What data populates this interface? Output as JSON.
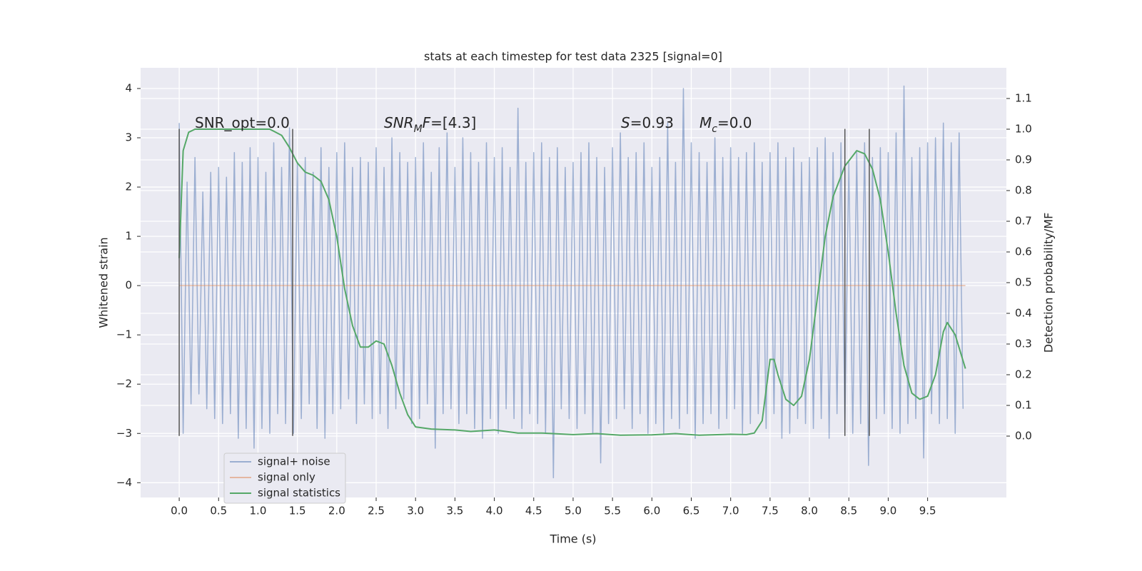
{
  "chart_data": {
    "type": "line",
    "title": "stats at each timestep for test data 2325 [signal=0]",
    "xlabel": "Time (s)",
    "ylabel": "Whitened strain",
    "y2label": "Detection probability/MF",
    "xlim": [
      -0.49,
      10.5
    ],
    "ylim": [
      -4.3,
      4.42
    ],
    "y2lim": [
      -0.2,
      1.2
    ],
    "xticks": [
      {
        "value": 0,
        "label": "0.0"
      },
      0.5,
      {
        "value": 1,
        "label": "1.0"
      },
      1.5,
      {
        "value": 2,
        "label": "2.0"
      },
      2.5,
      {
        "value": 3,
        "label": "3.0"
      },
      3.5,
      {
        "value": 4,
        "label": "4.0"
      },
      4.5,
      {
        "value": 5,
        "label": "5.0"
      },
      5.5,
      {
        "value": 6,
        "label": "6.0"
      },
      6.5,
      {
        "value": 7,
        "label": "7.0"
      },
      7.5,
      {
        "value": 8,
        "label": "8.0"
      },
      8.5,
      {
        "value": 9,
        "label": "9.0"
      },
      9.5
    ],
    "yticks": [
      {
        "value": -4,
        "label": "−4"
      },
      {
        "value": -3,
        "label": "−3"
      },
      {
        "value": -2,
        "label": "−2"
      },
      {
        "value": -1,
        "label": "−1"
      },
      0,
      1,
      2,
      3,
      4
    ],
    "y2ticks": [
      {
        "value": 0,
        "label": "0.0"
      },
      0.1,
      0.2,
      0.3,
      0.4,
      0.5,
      0.6,
      0.7,
      0.8,
      0.9,
      {
        "value": 1,
        "label": "1.0"
      },
      1.1
    ],
    "grid": true,
    "legend": "lower left",
    "vlines": {
      "x": [
        0,
        1.44,
        8.45,
        8.76
      ],
      "span": [
        -3.05,
        3.18
      ],
      "color": "#555555"
    },
    "annotations": [
      {
        "parts": [
          {
            "text": "SNR_opt=0.0"
          }
        ]
      },
      {
        "parts": [
          {
            "text": "SNR",
            "italic": true
          },
          {
            "text": "M",
            "italic": true,
            "sub": true
          },
          {
            "text": "F",
            "italic": true
          },
          {
            "text": "=[4.3]"
          }
        ]
      },
      {
        "parts": [
          {
            "text": "S",
            "italic": true
          },
          {
            "text": "=0.93"
          }
        ]
      },
      {
        "parts": [
          {
            "text": "M",
            "italic": true
          },
          {
            "text": "c",
            "italic": true,
            "sub": true
          },
          {
            "text": "=0.0"
          }
        ]
      }
    ],
    "series": [
      {
        "name": "signal+ noise",
        "color": "#4c72b0",
        "opacity": 0.5,
        "x": [
          0,
          0.05,
          0.1,
          0.15,
          0.2,
          0.25,
          0.3,
          0.35,
          0.4,
          0.45,
          0.5,
          0.55,
          0.6,
          0.65,
          0.7,
          0.75,
          0.8,
          0.85,
          0.9,
          0.95,
          1,
          1.05,
          1.1,
          1.15,
          1.2,
          1.25,
          1.3,
          1.35,
          1.4,
          1.45,
          1.5,
          1.55,
          1.6,
          1.65,
          1.7,
          1.75,
          1.8,
          1.85,
          1.9,
          1.95,
          2,
          2.05,
          2.1,
          2.15,
          2.2,
          2.25,
          2.3,
          2.35,
          2.4,
          2.45,
          2.5,
          2.55,
          2.6,
          2.65,
          2.7,
          2.75,
          2.8,
          2.85,
          2.9,
          2.95,
          3,
          3.05,
          3.1,
          3.15,
          3.2,
          3.25,
          3.3,
          3.35,
          3.4,
          3.45,
          3.5,
          3.55,
          3.6,
          3.65,
          3.7,
          3.75,
          3.8,
          3.85,
          3.9,
          3.95,
          4,
          4.05,
          4.1,
          4.15,
          4.2,
          4.25,
          4.3,
          4.35,
          4.4,
          4.45,
          4.5,
          4.55,
          4.6,
          4.65,
          4.7,
          4.75,
          4.8,
          4.85,
          4.9,
          4.95,
          5,
          5.05,
          5.1,
          5.15,
          5.2,
          5.25,
          5.3,
          5.35,
          5.4,
          5.45,
          5.5,
          5.55,
          5.6,
          5.65,
          5.7,
          5.75,
          5.8,
          5.85,
          5.9,
          5.95,
          6,
          6.05,
          6.1,
          6.15,
          6.2,
          6.25,
          6.3,
          6.35,
          6.4,
          6.45,
          6.5,
          6.55,
          6.6,
          6.65,
          6.7,
          6.75,
          6.8,
          6.85,
          6.9,
          6.95,
          7,
          7.05,
          7.1,
          7.15,
          7.2,
          7.25,
          7.3,
          7.35,
          7.4,
          7.45,
          7.5,
          7.55,
          7.6,
          7.65,
          7.7,
          7.75,
          7.8,
          7.85,
          7.9,
          7.95,
          8,
          8.05,
          8.1,
          8.15,
          8.2,
          8.25,
          8.3,
          8.35,
          8.4,
          8.45,
          8.5,
          8.55,
          8.6,
          8.65,
          8.7,
          8.75,
          8.8,
          8.85,
          8.9,
          8.95,
          9,
          9.05,
          9.1,
          9.15,
          9.2,
          9.25,
          9.3,
          9.35,
          9.4,
          9.45,
          9.5,
          9.55,
          9.6,
          9.65,
          9.7,
          9.75,
          9.8,
          9.85,
          9.9,
          9.95
        ],
        "values": [
          3.3,
          -3.0,
          2.1,
          -2.4,
          2.6,
          -2.2,
          1.9,
          -2.5,
          2.3,
          -2.7,
          2.4,
          -2.8,
          2.2,
          -2.6,
          2.7,
          -3.1,
          2.5,
          -2.9,
          2.8,
          -3.3,
          2.6,
          -2.9,
          2.3,
          -3.0,
          2.9,
          -2.6,
          2.4,
          -2.8,
          3.2,
          -3.0,
          2.5,
          -2.7,
          2.6,
          -2.4,
          2.3,
          -2.9,
          2.8,
          -3.1,
          2.4,
          -2.6,
          2.7,
          -2.5,
          2.9,
          -2.3,
          2.4,
          -2.8,
          2.6,
          -2.4,
          2.5,
          -2.7,
          2.8,
          -2.6,
          2.4,
          -2.9,
          3.0,
          -2.5,
          2.7,
          -2.3,
          2.5,
          -2.8,
          2.6,
          -2.7,
          2.9,
          -2.4,
          2.3,
          -3.3,
          2.8,
          -2.6,
          3.1,
          -2.5,
          2.4,
          -2.8,
          3.0,
          -2.6,
          2.7,
          -2.9,
          2.5,
          -3.1,
          2.9,
          -2.7,
          2.6,
          -3.0,
          2.8,
          -2.5,
          2.4,
          -2.7,
          3.6,
          -2.9,
          2.5,
          -2.6,
          2.7,
          -2.8,
          2.9,
          -3.0,
          2.6,
          -3.9,
          2.8,
          -2.5,
          2.4,
          -2.7,
          2.5,
          -2.9,
          2.7,
          -2.6,
          2.9,
          -3.0,
          2.6,
          -3.6,
          2.4,
          -2.8,
          2.8,
          -2.7,
          3.1,
          -2.5,
          2.6,
          -2.9,
          2.7,
          -2.6,
          2.9,
          -3.0,
          2.4,
          -2.8,
          2.6,
          -3.0,
          3.3,
          -2.7,
          2.5,
          -2.9,
          4.0,
          -2.6,
          2.9,
          -3.1,
          2.7,
          -2.8,
          2.5,
          -2.6,
          3.0,
          -2.9,
          2.6,
          -2.7,
          2.8,
          -2.5,
          2.6,
          -3.0,
          2.7,
          -2.8,
          2.9,
          -2.6,
          2.5,
          -2.9,
          2.7,
          -2.6,
          2.9,
          -3.1,
          2.6,
          -3.0,
          2.8,
          -2.7,
          2.5,
          -2.8,
          2.6,
          -2.9,
          2.8,
          -2.7,
          3.0,
          -3.1,
          2.7,
          -2.6,
          2.9,
          -2.8,
          2.5,
          -3.0,
          2.7,
          -2.8,
          2.9,
          -3.65,
          2.6,
          -2.7,
          2.8,
          -2.6,
          2.7,
          -2.9,
          3.1,
          -3.0,
          4.05,
          -2.8,
          2.6,
          -2.7,
          2.8,
          -3.5,
          2.9,
          -2.6,
          3.0,
          -2.8,
          3.3,
          -2.7,
          2.9,
          -3.0,
          3.1,
          -2.5
        ]
      },
      {
        "name": "signal only",
        "color": "#dd8452",
        "opacity": 0.5,
        "x": [
          0,
          9.98
        ],
        "values": [
          0,
          0
        ]
      },
      {
        "name": "signal statistics",
        "color": "#55a868",
        "opacity": 1,
        "axis": "y2",
        "x": [
          0,
          0.05,
          0.12,
          0.2,
          0.5,
          1.0,
          1.15,
          1.3,
          1.4,
          1.5,
          1.6,
          1.7,
          1.8,
          1.9,
          2.0,
          2.1,
          2.2,
          2.3,
          2.4,
          2.5,
          2.6,
          2.7,
          2.8,
          2.9,
          3.0,
          3.2,
          3.5,
          3.7,
          4.0,
          4.3,
          4.6,
          5.0,
          5.3,
          5.6,
          6.0,
          6.3,
          6.6,
          7.0,
          7.2,
          7.3,
          7.4,
          7.5,
          7.55,
          7.6,
          7.7,
          7.8,
          7.9,
          8.0,
          8.1,
          8.2,
          8.3,
          8.45,
          8.6,
          8.7,
          8.8,
          8.9,
          9.0,
          9.1,
          9.2,
          9.3,
          9.4,
          9.5,
          9.6,
          9.7,
          9.75,
          9.85,
          9.98
        ],
        "values": [
          0.58,
          0.93,
          0.99,
          1.0,
          1.0,
          1.0,
          1.0,
          0.98,
          0.94,
          0.89,
          0.86,
          0.85,
          0.83,
          0.77,
          0.65,
          0.48,
          0.36,
          0.29,
          0.29,
          0.31,
          0.3,
          0.23,
          0.14,
          0.07,
          0.03,
          0.023,
          0.02,
          0.015,
          0.02,
          0.01,
          0.01,
          0.005,
          0.008,
          0.003,
          0.004,
          0.008,
          0.003,
          0.006,
          0.005,
          0.01,
          0.05,
          0.25,
          0.25,
          0.2,
          0.12,
          0.1,
          0.13,
          0.25,
          0.45,
          0.65,
          0.78,
          0.88,
          0.93,
          0.92,
          0.87,
          0.77,
          0.6,
          0.4,
          0.23,
          0.14,
          0.12,
          0.13,
          0.2,
          0.34,
          0.37,
          0.33,
          0.22
        ]
      }
    ]
  }
}
